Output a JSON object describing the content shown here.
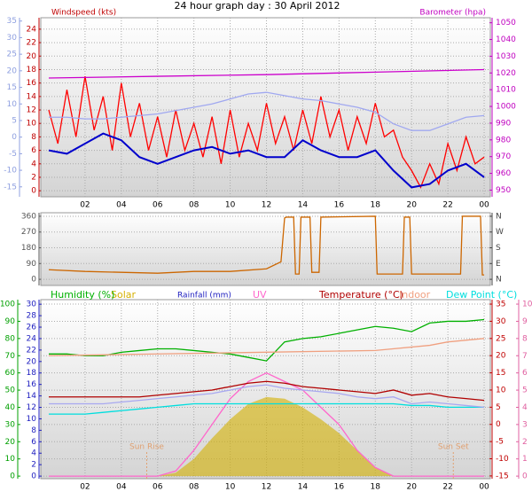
{
  "chart_data": [
    {
      "type": "line",
      "title": "24 hour graph day : 30 April 2012",
      "y_label": "Windspeed (kts)",
      "y2_label": "Barometer (hpa)",
      "grid": true,
      "xlim": [
        -0.44,
        24.34
      ],
      "xticks": [
        {
          "value": 2,
          "label": "02"
        },
        {
          "value": 4,
          "label": "04"
        },
        {
          "value": 6,
          "label": "06"
        },
        {
          "value": 8,
          "label": "08"
        },
        10,
        12,
        14,
        16,
        18,
        20,
        22,
        {
          "value": 24,
          "label": "00"
        }
      ],
      "ylim": [
        -0.9,
        25.7
      ],
      "yticks": [
        0,
        2,
        4,
        6,
        8,
        10,
        12,
        14,
        16,
        18,
        20,
        22,
        24
      ],
      "y2lim": [
        946,
        1053
      ],
      "y2ticks": [
        950,
        960,
        970,
        980,
        990,
        1000,
        1010,
        1020,
        1030,
        1040,
        1050
      ],
      "y3lim": [
        -18,
        36
      ],
      "y3ticks": [
        -15,
        -10,
        -5,
        0,
        5,
        10,
        15,
        20,
        25,
        30,
        35
      ],
      "series": [
        {
          "color": "#ff0000",
          "axis": "y",
          "x": [
            0,
            0.5,
            1,
            1.5,
            2,
            2.5,
            3,
            3.5,
            4,
            4.5,
            5,
            5.5,
            6,
            6.5,
            7,
            7.5,
            8,
            8.5,
            9,
            9.5,
            10,
            10.5,
            11,
            11.5,
            12,
            12.5,
            13,
            13.5,
            14,
            14.5,
            15,
            15.5,
            16,
            16.5,
            17,
            17.5,
            18,
            18.5,
            19,
            19.5,
            20,
            20.5,
            21,
            21.5,
            22,
            22.5,
            23,
            23.5,
            24
          ],
          "values": [
            12,
            7,
            15,
            8,
            17,
            9,
            14,
            6,
            16,
            8,
            13,
            6,
            11,
            5,
            12,
            6,
            10,
            5,
            11,
            4,
            12,
            5,
            10,
            6,
            13,
            7,
            11,
            6,
            12,
            7,
            14,
            8,
            12,
            6,
            11,
            7,
            13,
            8,
            9,
            5,
            3,
            0.5,
            4,
            1,
            7,
            3,
            8,
            4,
            5
          ]
        },
        {
          "color": "#a0a8f0",
          "axis": "y3",
          "x": [
            0,
            1,
            2,
            3,
            4,
            5,
            6,
            7,
            8,
            9,
            10,
            11,
            12,
            13,
            14,
            15,
            16,
            17,
            18,
            19,
            20,
            21,
            22,
            23,
            24
          ],
          "values": [
            6,
            6,
            5.5,
            5.5,
            6,
            6.5,
            7,
            8,
            9,
            10,
            11.5,
            13,
            13.5,
            12.5,
            11.5,
            11,
            10,
            9,
            7.5,
            4,
            2,
            2,
            4,
            6,
            6.5
          ]
        },
        {
          "color": "#0000cc",
          "axis": "y",
          "x": [
            0,
            1,
            2,
            3,
            4,
            5,
            6,
            7,
            8,
            9,
            10,
            11,
            12,
            13,
            14,
            15,
            16,
            17,
            18,
            19,
            20,
            21,
            22,
            23,
            24
          ],
          "values": [
            6,
            5.5,
            7,
            8.5,
            7.5,
            5,
            4,
            5,
            6,
            6.5,
            5.5,
            6,
            5,
            5,
            7.5,
            6,
            5,
            5,
            6,
            3,
            0.5,
            1,
            3,
            4,
            2
          ]
        },
        {
          "color": "#cc00cc",
          "axis": "y2",
          "x": [
            0,
            6,
            12,
            18,
            24
          ],
          "values": [
            1017,
            1018,
            1019,
            1020.5,
            1022
          ]
        }
      ]
    },
    {
      "type": "line",
      "grid": true,
      "xlim": [
        -0.44,
        24.34
      ],
      "ylim": [
        -35,
        380
      ],
      "yticks": [
        0,
        90,
        180,
        270,
        360
      ],
      "y2lim": [
        -35,
        380
      ],
      "y2ticks": [
        {
          "value": 0,
          "label": "N"
        },
        {
          "value": 90,
          "label": "E"
        },
        {
          "value": 180,
          "label": "S"
        },
        {
          "value": 270,
          "label": "W"
        },
        {
          "value": 360,
          "label": "N"
        }
      ],
      "series": [
        {
          "color": "#cc6600",
          "axis": "y",
          "x": [
            0,
            2,
            4,
            6,
            8,
            10,
            12,
            12.8,
            13,
            13.1,
            13.5,
            13.6,
            13.8,
            13.9,
            14.4,
            14.5,
            14.9,
            15,
            18,
            18.1,
            19.5,
            19.6,
            19.9,
            20,
            22.7,
            22.8,
            23.8,
            23.9,
            24
          ],
          "values": [
            55,
            45,
            40,
            35,
            45,
            45,
            60,
            100,
            350,
            355,
            355,
            30,
            30,
            355,
            355,
            40,
            40,
            355,
            360,
            30,
            30,
            355,
            355,
            30,
            30,
            360,
            360,
            25,
            25
          ]
        }
      ]
    },
    {
      "type": "line",
      "grid": true,
      "y3_label": "Rainfall (mm)",
      "xlim": [
        -0.44,
        24.34
      ],
      "xticks": [
        {
          "value": 2,
          "label": "02"
        },
        {
          "value": 4,
          "label": "04"
        },
        {
          "value": 6,
          "label": "06"
        },
        {
          "value": 8,
          "label": "08"
        },
        10,
        12,
        14,
        16,
        18,
        20,
        22,
        {
          "value": 24,
          "label": "00"
        }
      ],
      "ylim": [
        -1.5,
        102.6
      ],
      "yticks": [
        0,
        10,
        20,
        30,
        40,
        50,
        60,
        70,
        80,
        90,
        100
      ],
      "y2lim": [
        -15.8,
        36.3
      ],
      "y2ticks": [
        -15,
        -10,
        -5,
        0,
        5,
        10,
        15,
        20,
        25,
        30,
        35
      ],
      "y3lim": [
        -0.45,
        30.8
      ],
      "y3ticks": [
        0,
        2,
        4,
        6,
        8,
        10,
        12,
        14,
        16,
        18,
        20,
        22,
        24,
        26,
        28,
        30
      ],
      "y4lim": [
        -0.15,
        10.26
      ],
      "y4ticks": [
        0,
        1,
        2,
        3,
        4,
        5,
        6,
        7,
        8,
        9,
        10
      ],
      "annotations": [
        {
          "text": "Sun Rise",
          "x": 5.4
        },
        {
          "text": "Sun Set",
          "x": 22.3
        }
      ],
      "series": [
        {
          "name": "Humidity (%)",
          "color": "#00b000",
          "axis": "y",
          "x": [
            0,
            1,
            2,
            3,
            4,
            5,
            6,
            7,
            8,
            9,
            10,
            11,
            12,
            13,
            14,
            15,
            16,
            17,
            18,
            19,
            20,
            21,
            22,
            23,
            24
          ],
          "values": [
            71,
            71,
            70,
            70,
            72,
            73,
            74,
            74,
            73,
            72,
            71,
            69,
            67,
            78,
            80,
            81,
            83,
            85,
            87,
            86,
            84,
            89,
            90,
            90,
            91
          ]
        },
        {
          "name": "Solar",
          "color": "#d4b000",
          "axis": "y",
          "type": "area",
          "x": [
            0,
            1,
            2,
            3,
            4,
            5,
            6,
            7,
            8,
            9,
            10,
            11,
            12,
            13,
            14,
            15,
            16,
            17,
            18,
            19,
            20,
            21,
            22,
            23,
            24
          ],
          "values": [
            0,
            0,
            0,
            0,
            0,
            0,
            0,
            2,
            10,
            22,
            33,
            42,
            46,
            45,
            40,
            33,
            25,
            15,
            5,
            0,
            0,
            0,
            0,
            0,
            0
          ]
        },
        {
          "name": "UV",
          "color": "#ff66cc",
          "axis": "y4",
          "x": [
            0,
            1,
            2,
            3,
            4,
            5,
            6,
            7,
            8,
            9,
            10,
            11,
            12,
            13,
            14,
            15,
            16,
            17,
            18,
            19,
            20,
            21,
            22,
            23,
            24
          ],
          "values": [
            0,
            0,
            0,
            0,
            0,
            0,
            0,
            0.3,
            1.5,
            3,
            4.5,
            5.5,
            6,
            5.5,
            5,
            4,
            3,
            1.5,
            0.5,
            0,
            0,
            0,
            0,
            0,
            0
          ]
        },
        {
          "name": "Temperature (°C)",
          "color": "#b00000",
          "axis": "y2",
          "x": [
            0,
            1,
            2,
            3,
            4,
            5,
            6,
            7,
            8,
            9,
            10,
            11,
            12,
            13,
            14,
            15,
            16,
            17,
            18,
            19,
            20,
            21,
            22,
            23,
            24
          ],
          "values": [
            8,
            8,
            8,
            8,
            8,
            8,
            8.5,
            9,
            9.5,
            10,
            11,
            12,
            12.5,
            12,
            11,
            10.5,
            10,
            9.5,
            9,
            10,
            8.5,
            9,
            8,
            7.5,
            7
          ]
        },
        {
          "name": "Indoor",
          "color": "#f0a080",
          "axis": "y2",
          "x": [
            0,
            6,
            12,
            18,
            21,
            22,
            24
          ],
          "values": [
            20,
            20.5,
            21,
            21.5,
            23,
            24,
            25
          ]
        },
        {
          "name": "Dew Point (°C)",
          "color": "#00dede",
          "axis": "y2",
          "x": [
            0,
            1,
            2,
            3,
            4,
            5,
            6,
            7,
            8,
            9,
            10,
            11,
            12,
            13,
            14,
            15,
            16,
            17,
            18,
            19,
            20,
            21,
            22,
            23,
            24
          ],
          "values": [
            3,
            3,
            3,
            3.5,
            4,
            4.5,
            5,
            5.5,
            6,
            6,
            6,
            6,
            6,
            6,
            6,
            6,
            6,
            6,
            6,
            6,
            5.5,
            5.5,
            5,
            5,
            5
          ]
        },
        {
          "color": "#a8a8f0",
          "axis": "y2",
          "x": [
            0,
            1,
            2,
            3,
            4,
            5,
            6,
            7,
            8,
            9,
            10,
            11,
            12,
            13,
            14,
            15,
            16,
            17,
            18,
            19,
            20,
            21,
            22,
            23,
            24
          ],
          "values": [
            6,
            6,
            6,
            6,
            6.5,
            7,
            7.5,
            8,
            8.5,
            9,
            10,
            11,
            11.5,
            10.5,
            10,
            9.5,
            9,
            8,
            7.5,
            8,
            6,
            6.5,
            6,
            5.5,
            5
          ]
        }
      ]
    }
  ]
}
